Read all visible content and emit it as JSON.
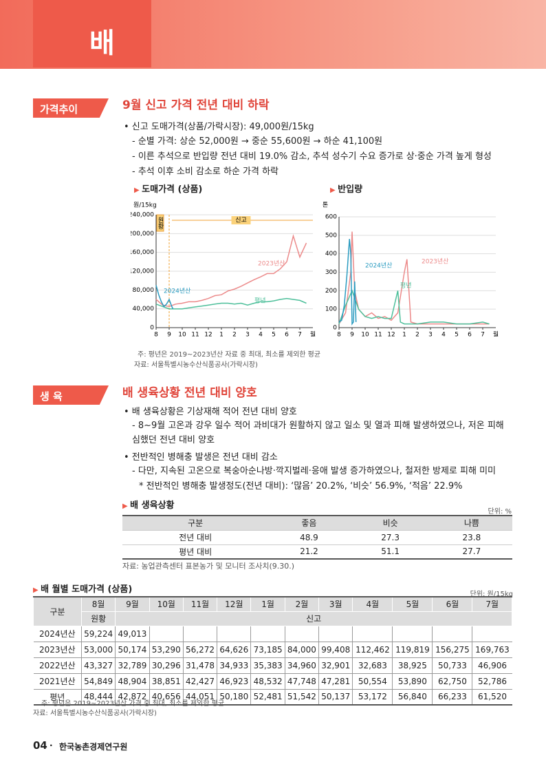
{
  "header": {
    "title": "배"
  },
  "price_section": {
    "tag": "가격추이",
    "heading": "9월 신고 가격 전년 대비 하락",
    "bullets": [
      {
        "text": "신고 도매가격(상품/가락시장): 49,000원/15kg",
        "subs": [
          "순별 가격: 상순 52,000원 → 중순 55,600원 → 하순 41,100원",
          "이른 추석으로 반입량 전년 대비 19.0% 감소, 추석 성수기 수요 증가로 상·중순 가격 높게 형성",
          "추석 이후 소비 감소로 하순 가격 하락"
        ]
      }
    ],
    "notes": [
      "주: 평년은 2019~2023년산 자료 중 최대, 최소를 제외한 평균",
      "자료: 서울특별시농수산식품공사(가락시장)"
    ]
  },
  "price_chart": {
    "type": "line",
    "title": "도매가격 (상품)",
    "y_unit": "원/15kg",
    "x_unit": "월",
    "annotations": [
      "원황",
      "신고"
    ],
    "xlim": [
      0,
      12
    ],
    "xticks": [
      {
        "value": 0,
        "label": "8"
      },
      {
        "value": 1,
        "label": "9"
      },
      {
        "value": 2,
        "label": "10"
      },
      {
        "value": 3,
        "label": "11"
      },
      {
        "value": 4,
        "label": "12"
      },
      {
        "value": 5,
        "label": "1"
      },
      {
        "value": 6,
        "label": "2"
      },
      {
        "value": 7,
        "label": "3"
      },
      {
        "value": 8,
        "label": "4"
      },
      {
        "value": 9,
        "label": "5"
      },
      {
        "value": 10,
        "label": "6"
      },
      {
        "value": 11,
        "label": "7"
      }
    ],
    "ylim": [
      0,
      240000
    ],
    "yticks": [
      0,
      {
        "value": 40000,
        "label": "40,000"
      },
      {
        "value": 80000,
        "label": "80,000"
      },
      {
        "value": 120000,
        "label": "120,000"
      },
      {
        "value": 160000,
        "label": "160,000"
      },
      {
        "value": 200000,
        "label": "200,000"
      },
      {
        "value": 240000,
        "label": "240,000"
      }
    ],
    "series": [
      {
        "name": "2023년산",
        "color": "#ec8a8a",
        "x": [
          0,
          0.5,
          1,
          1.5,
          2,
          2.5,
          3,
          3.5,
          4,
          4.5,
          5,
          5.5,
          6,
          6.5,
          7,
          7.5,
          8,
          8.5,
          9,
          9.5,
          10,
          10.5,
          11,
          11.5
        ],
        "values": [
          60000,
          48000,
          45000,
          50000,
          52000,
          55000,
          55000,
          58000,
          62000,
          68000,
          70000,
          78000,
          82000,
          88000,
          95000,
          102000,
          108000,
          115000,
          115000,
          125000,
          140000,
          195000,
          150000,
          180000
        ]
      },
      {
        "name": "평년",
        "color": "#4dbf9a",
        "x": [
          0,
          0.5,
          1,
          1.5,
          2,
          2.5,
          3,
          3.5,
          4,
          4.5,
          5,
          5.5,
          6,
          6.5,
          7,
          7.5,
          8,
          8.5,
          9,
          9.5,
          10,
          10.5,
          11,
          11.5
        ],
        "values": [
          50000,
          45000,
          40000,
          40000,
          40000,
          42000,
          44000,
          46000,
          48000,
          50000,
          52000,
          52000,
          50000,
          52000,
          48000,
          52000,
          55000,
          55000,
          57000,
          60000,
          62000,
          60000,
          58000,
          52000
        ]
      },
      {
        "name": "2024년산",
        "color": "#2a9bc0",
        "x": [
          0,
          0.2,
          0.4,
          0.6,
          0.8,
          1,
          1.2,
          1.3
        ],
        "values": [
          90000,
          70000,
          55000,
          45000,
          50000,
          60000,
          45000,
          40000
        ]
      }
    ]
  },
  "volume_chart": {
    "type": "line",
    "title": "반입량",
    "y_unit": "톤",
    "x_unit": "월",
    "xlim": [
      0,
      12
    ],
    "xticks": [
      {
        "value": 0,
        "label": "8"
      },
      {
        "value": 1,
        "label": "9"
      },
      {
        "value": 2,
        "label": "10"
      },
      {
        "value": 3,
        "label": "11"
      },
      {
        "value": 4,
        "label": "12"
      },
      {
        "value": 5,
        "label": "1"
      },
      {
        "value": 6,
        "label": "2"
      },
      {
        "value": 7,
        "label": "3"
      },
      {
        "value": 8,
        "label": "4"
      },
      {
        "value": 9,
        "label": "5"
      },
      {
        "value": 10,
        "label": "6"
      },
      {
        "value": 11,
        "label": "7"
      }
    ],
    "ylim": [
      0,
      600
    ],
    "yticks": [
      0,
      100,
      200,
      300,
      400,
      500,
      600
    ],
    "series": [
      {
        "name": "2023년산",
        "color": "#ec8a8a",
        "x": [
          0,
          0.5,
          0.9,
          1,
          1.2,
          1.5,
          2,
          2.5,
          3,
          3.5,
          4,
          4.5,
          5,
          5.2,
          5.5,
          6,
          6.5,
          7,
          8,
          9,
          10,
          11,
          11.5
        ],
        "values": [
          20,
          80,
          300,
          520,
          200,
          100,
          60,
          80,
          50,
          60,
          40,
          80,
          300,
          370,
          30,
          20,
          20,
          20,
          20,
          20,
          20,
          20,
          20
        ]
      },
      {
        "name": "평년",
        "color": "#4dbf9a",
        "x": [
          0,
          0.5,
          1,
          1.5,
          2,
          2.5,
          3,
          3.5,
          4,
          4.5,
          4.7,
          5,
          6,
          7,
          8,
          9,
          10,
          11,
          11.5
        ],
        "values": [
          20,
          120,
          200,
          100,
          60,
          50,
          60,
          50,
          50,
          200,
          30,
          20,
          20,
          30,
          30,
          20,
          20,
          30,
          20
        ]
      },
      {
        "name": "2024년산",
        "color": "#2a9bc0",
        "x": [
          0,
          0.2,
          0.4,
          0.6,
          0.8,
          0.9,
          1,
          1.1,
          1.2,
          1.3
        ],
        "values": [
          30,
          40,
          120,
          280,
          480,
          400,
          20,
          30,
          250,
          30
        ]
      }
    ]
  },
  "growth_section": {
    "tag": "생 육",
    "heading": "배 생육상황 전년 대비 양호",
    "bullets": [
      {
        "text": "배 생육상황은 기상재해 적어 전년 대비 양호",
        "subs": [
          "8~9월 고온과 강우 일수 적어 과비대가 원활하지 않고 일소 및 열과 피해 발생하였으나, 저온 피해 심했던 전년 대비 양호"
        ]
      },
      {
        "text": "전반적인 병해충 발생은 전년 대비 감소",
        "subs": [
          "다만, 지속된 고온으로 복숭아순나방·깍지벌레·응애 발생 증가하였으나, 철저한 방제로 피해 미미"
        ],
        "star": "* 전반적인 병해충 발생정도(전년 대비): ‘많음’ 20.2%, ‘비슷’ 56.9%, ‘적음’ 22.9%"
      }
    ]
  },
  "growth_table": {
    "title": "배 생육상황",
    "unit": "단위: %",
    "header": [
      "구분",
      "좋음",
      "비슷",
      "나쁨"
    ],
    "rows": [
      [
        "전년 대비",
        "48.9",
        "27.3",
        "23.8"
      ],
      [
        "평년 대비",
        "21.2",
        "51.1",
        "27.7"
      ]
    ],
    "source": "자료: 농업관측센터 표본농가 및 모니터 조사치(9.30.)"
  },
  "monthly_table": {
    "title": "배 월별 도매가격 (상품)",
    "unit": "단위: 원/15kg",
    "corner": "구분",
    "months": [
      "8월",
      "9월",
      "10월",
      "11월",
      "12월",
      "1월",
      "2월",
      "3월",
      "4월",
      "5월",
      "6월",
      "7월"
    ],
    "sub_header": [
      "원황",
      "신고"
    ],
    "rows": [
      [
        "2024년산",
        "59,224",
        "49,013",
        null,
        null,
        null,
        null,
        null,
        null,
        null,
        null,
        null,
        null
      ],
      [
        "2023년산",
        "53,000",
        "50,174",
        "53,290",
        "56,272",
        "64,626",
        "73,185",
        "84,000",
        "99,408",
        "112,462",
        "119,819",
        "156,275",
        "169,763"
      ],
      [
        "2022년산",
        "43,327",
        "32,789",
        "30,296",
        "31,478",
        "34,933",
        "35,383",
        "34,960",
        "32,901",
        "32,683",
        "38,925",
        "50,733",
        "46,906"
      ],
      [
        "2021년산",
        "54,849",
        "48,904",
        "38,851",
        "42,427",
        "46,923",
        "48,532",
        "47,748",
        "47,281",
        "50,554",
        "53,890",
        "62,750",
        "52,786"
      ],
      [
        "평년",
        "48,444",
        "42,872",
        "40,656",
        "44,051",
        "50,180",
        "52,481",
        "51,542",
        "50,137",
        "53,172",
        "56,840",
        "66,233",
        "61,520"
      ]
    ],
    "notes": [
      "주: 평년은 2019~2023년산 가격 중 최대, 최소를 제외한 평균",
      "자료: 서울특별시농수산식품공사(가락시장)"
    ]
  },
  "footer": {
    "page": "04",
    "org": "한국농촌경제연구원"
  }
}
